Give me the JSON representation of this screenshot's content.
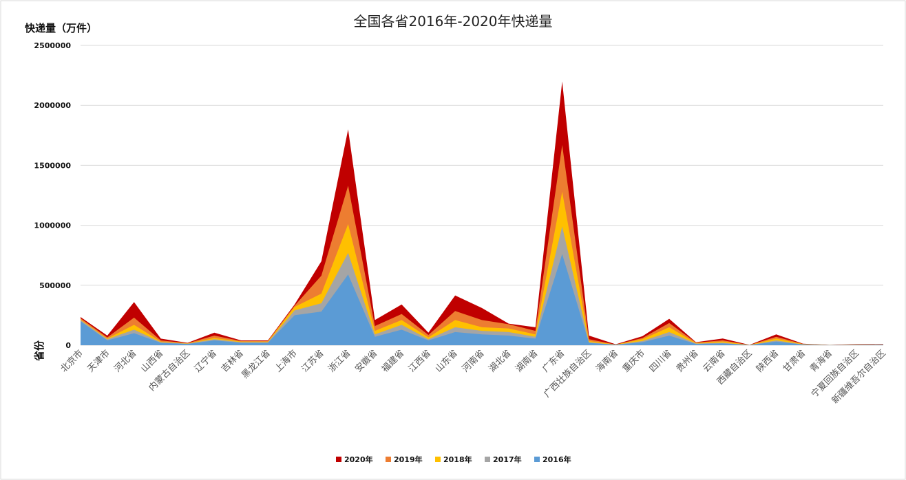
{
  "chart_data": {
    "type": "area",
    "stacked": true,
    "title": "全国各省2016年-2020年快递量",
    "ylabel": "快递量（万件）",
    "xlabel": "省份",
    "ylim": [
      0,
      2500000
    ],
    "yticks": [
      0,
      500000,
      1000000,
      1500000,
      2000000,
      2500000
    ],
    "ytick_labels": [
      "0",
      "500000",
      "1000000",
      "1500000",
      "2000000",
      "2500000"
    ],
    "grid": true,
    "legend_position": "bottom",
    "categories": [
      "北京市",
      "天津市",
      "河北省",
      "山西省",
      "内蒙古自治区",
      "辽宁省",
      "吉林省",
      "黑龙江省",
      "上海市",
      "江苏省",
      "浙江省",
      "安徽省",
      "福建省",
      "江西省",
      "山东省",
      "河南省",
      "湖北省",
      "湖南省",
      "广东省",
      "广西壮族自治区",
      "海南省",
      "重庆市",
      "四川省",
      "贵州省",
      "云南省",
      "西藏自治区",
      "陕西省",
      "甘肃省",
      "青海省",
      "宁夏回族自治区",
      "新疆维吾尔自治区"
    ],
    "series": [
      {
        "name": "2016年",
        "color": "#5b9bd5",
        "values": [
          200000,
          40000,
          100000,
          20000,
          10000,
          40000,
          20000,
          20000,
          250000,
          280000,
          590000,
          70000,
          130000,
          40000,
          110000,
          90000,
          80000,
          55000,
          760000,
          20000,
          3000,
          25000,
          80000,
          10000,
          15000,
          1000,
          30000,
          5000,
          1000,
          3000,
          4000
        ]
      },
      {
        "name": "2017年",
        "color": "#a5a5a5",
        "values": [
          10000,
          10000,
          30000,
          5000,
          3000,
          10000,
          5000,
          5000,
          40000,
          70000,
          180000,
          20000,
          40000,
          10000,
          40000,
          30000,
          30000,
          15000,
          230000,
          5000,
          1000,
          10000,
          30000,
          4000,
          6000,
          500,
          10000,
          2000,
          500,
          1000,
          1000
        ]
      },
      {
        "name": "2018年",
        "color": "#ffc000",
        "values": [
          5000,
          5000,
          40000,
          5000,
          2000,
          10000,
          5000,
          5000,
          30000,
          80000,
          240000,
          30000,
          40000,
          15000,
          60000,
          30000,
          30000,
          20000,
          290000,
          10000,
          1000,
          15000,
          40000,
          4000,
          10000,
          500,
          15000,
          2000,
          500,
          1000,
          1000
        ]
      },
      {
        "name": "2019年",
        "color": "#ed7d31",
        "values": [
          10000,
          10000,
          60000,
          10000,
          2000,
          20000,
          5000,
          5000,
          10000,
          150000,
          320000,
          40000,
          50000,
          20000,
          75000,
          60000,
          35000,
          30000,
          390000,
          15000,
          1000,
          10000,
          35000,
          4000,
          10000,
          500,
          15000,
          2000,
          500,
          2000,
          2000
        ]
      },
      {
        "name": "2020年",
        "color": "#c00000",
        "values": [
          10000,
          15000,
          130000,
          15000,
          3000,
          25000,
          5000,
          5000,
          10000,
          120000,
          470000,
          50000,
          80000,
          20000,
          130000,
          100000,
          5000,
          30000,
          530000,
          30000,
          2000,
          15000,
          35000,
          3000,
          15000,
          500,
          20000,
          2000,
          500,
          2000,
          2000
        ]
      }
    ],
    "legend_order": [
      "2020年",
      "2019年",
      "2018年",
      "2017年",
      "2016年"
    ]
  }
}
